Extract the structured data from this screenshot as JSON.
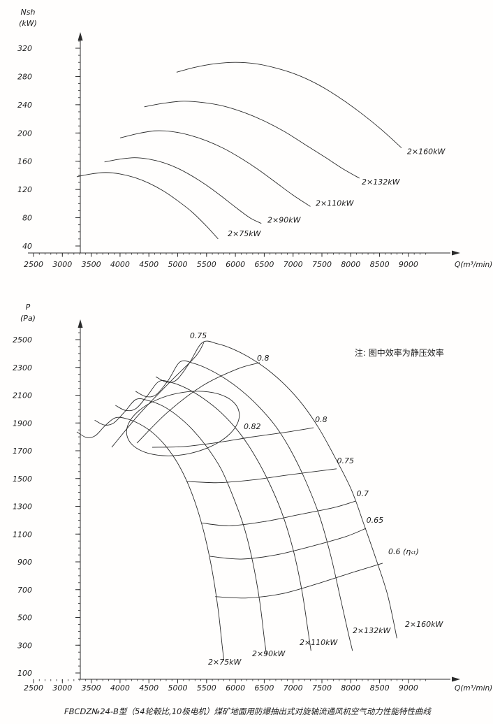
{
  "page": {
    "background_color": "#fffefd",
    "line_color": "#2b2b2b",
    "text_color": "#1c1c1c"
  },
  "caption": {
    "text": "FBCDZ№24-B型（54轮毂比,10极电机）煤矿地面用防爆抽出式对旋轴流通风机空气动力性能特性曲线"
  },
  "chart_data": [
    {
      "name": "shaft-power-chart",
      "type": "line",
      "xlabel": "Q(m³/min)",
      "ylabel_line1": "Nsh",
      "ylabel_line2": "(kW)",
      "xlim": [
        2500,
        9400
      ],
      "ylim": [
        30,
        330
      ],
      "grid": false,
      "x_ticks": [
        2500,
        3000,
        3500,
        4000,
        4500,
        5000,
        5500,
        6000,
        6500,
        7000,
        7500,
        8000,
        8500,
        9000
      ],
      "x_minor_step": 100,
      "x_minor_end": 9300,
      "y_ticks": [
        40,
        80,
        120,
        160,
        200,
        240,
        280,
        320
      ],
      "y_minor_step": 10,
      "y_minor_range": [
        30,
        330
      ],
      "series": [
        {
          "name": "2×75kW",
          "label_at": [
            5866,
            54
          ],
          "points": [
            [
              3250,
              138
            ],
            [
              3500,
              142
            ],
            [
              3750,
              144
            ],
            [
              4000,
              142
            ],
            [
              4250,
              137
            ],
            [
              4500,
              129
            ],
            [
              4750,
              118
            ],
            [
              5000,
              104
            ],
            [
              5250,
              88
            ],
            [
              5500,
              68
            ],
            [
              5700,
              50
            ]
          ]
        },
        {
          "name": "2×90kW",
          "label_at": [
            6556,
            73
          ],
          "points": [
            [
              3730,
              159
            ],
            [
              4000,
              163
            ],
            [
              4250,
              165
            ],
            [
              4500,
              163
            ],
            [
              4750,
              158
            ],
            [
              5000,
              150
            ],
            [
              5250,
              139
            ],
            [
              5500,
              126
            ],
            [
              5750,
              111
            ],
            [
              6000,
              95
            ],
            [
              6250,
              80
            ],
            [
              6450,
              72
            ]
          ]
        },
        {
          "name": "2×110kW",
          "label_at": [
            7391,
            97
          ],
          "points": [
            [
              4000,
              193
            ],
            [
              4300,
              199
            ],
            [
              4600,
              203
            ],
            [
              4900,
              202
            ],
            [
              5200,
              197
            ],
            [
              5500,
              189
            ],
            [
              5800,
              178
            ],
            [
              6100,
              164
            ],
            [
              6400,
              148
            ],
            [
              6700,
              130
            ],
            [
              7000,
              112
            ],
            [
              7300,
              96
            ]
          ]
        },
        {
          "name": "2×132kW",
          "label_at": [
            8190,
            127
          ],
          "points": [
            [
              4420,
              237
            ],
            [
              4750,
              242
            ],
            [
              5100,
              245
            ],
            [
              5450,
              243
            ],
            [
              5800,
              238
            ],
            [
              6150,
              229
            ],
            [
              6500,
              217
            ],
            [
              6850,
              202
            ],
            [
              7200,
              184
            ],
            [
              7550,
              166
            ],
            [
              7850,
              150
            ],
            [
              8150,
              136
            ]
          ]
        },
        {
          "name": "2×160kW",
          "label_at": [
            8976,
            170
          ],
          "points": [
            [
              4980,
              286
            ],
            [
              5300,
              293
            ],
            [
              5650,
              298
            ],
            [
              6000,
              300
            ],
            [
              6350,
              298
            ],
            [
              6700,
              292
            ],
            [
              7050,
              283
            ],
            [
              7400,
              270
            ],
            [
              7750,
              253
            ],
            [
              8100,
              233
            ],
            [
              8500,
              207
            ],
            [
              8880,
              179
            ]
          ]
        }
      ]
    },
    {
      "name": "static-pressure-chart",
      "type": "line",
      "xlabel": "Q(m³/min)",
      "ylabel_line1": "P",
      "ylabel_line2": "(Pa)",
      "xlim": [
        2500,
        9400
      ],
      "ylim": [
        55,
        2550
      ],
      "grid": false,
      "note": {
        "text": "注: 图中效率为静压效率",
        "at": [
          8068,
          2384
        ]
      },
      "x_ticks": [
        2500,
        3000,
        3500,
        4000,
        4500,
        5000,
        5500,
        6000,
        6500,
        7000,
        7500,
        8000,
        8500,
        9000
      ],
      "x_minor_step": 100,
      "x_minor_end": 9300,
      "y_ticks": [
        100,
        300,
        500,
        700,
        900,
        1100,
        1300,
        1500,
        1700,
        1900,
        2100,
        2300,
        2500
      ],
      "y_minor_step": 50,
      "y_minor_range": [
        100,
        2550
      ],
      "series": [
        {
          "name": "2×75kW",
          "label_at": [
            5526,
            160
          ],
          "points": [
            [
              3250,
              1836
            ],
            [
              3420,
              1795
            ],
            [
              3570,
              1808
            ],
            [
              3740,
              1880
            ],
            [
              3916,
              1937
            ],
            [
              4120,
              1930
            ],
            [
              4350,
              1890
            ],
            [
              4580,
              1825
            ],
            [
              4800,
              1730
            ],
            [
              5000,
              1610
            ],
            [
              5180,
              1460
            ],
            [
              5340,
              1280
            ],
            [
              5480,
              1070
            ],
            [
              5600,
              830
            ],
            [
              5700,
              560
            ],
            [
              5770,
              300
            ],
            [
              5800,
              190
            ]
          ]
        },
        {
          "name": "2×90kW",
          "label_at": [
            6289,
            221
          ],
          "points": [
            [
              3560,
              1920
            ],
            [
              3730,
              1885
            ],
            [
              3890,
              1900
            ],
            [
              4080,
              1980
            ],
            [
              4280,
              2070
            ],
            [
              4500,
              2060
            ],
            [
              4750,
              2020
            ],
            [
              5000,
              1950
            ],
            [
              5250,
              1855
            ],
            [
              5500,
              1730
            ],
            [
              5750,
              1570
            ],
            [
              5950,
              1380
            ],
            [
              6150,
              1150
            ],
            [
              6300,
              900
            ],
            [
              6420,
              620
            ],
            [
              6500,
              350
            ],
            [
              6540,
              230
            ]
          ]
        },
        {
          "name": "2×110kW",
          "label_at": [
            7112,
            301
          ],
          "points": [
            [
              3920,
              2027
            ],
            [
              4100,
              1990
            ],
            [
              4280,
              2005
            ],
            [
              4480,
              2100
            ],
            [
              4679,
              2200
            ],
            [
              4900,
              2190
            ],
            [
              5150,
              2150
            ],
            [
              5450,
              2075
            ],
            [
              5750,
              1975
            ],
            [
              6050,
              1840
            ],
            [
              6300,
              1690
            ],
            [
              6550,
              1500
            ],
            [
              6800,
              1260
            ],
            [
              7000,
              990
            ],
            [
              7150,
              700
            ],
            [
              7250,
              430
            ],
            [
              7310,
              260
            ]
          ]
        },
        {
          "name": "2×132kW",
          "label_at": [
            8032,
            387
          ],
          "points": [
            [
              4270,
              2128
            ],
            [
              4450,
              2090
            ],
            [
              4630,
              2105
            ],
            [
              4840,
              2210
            ],
            [
              5042,
              2340
            ],
            [
              5270,
              2330
            ],
            [
              5520,
              2290
            ],
            [
              5800,
              2225
            ],
            [
              6100,
              2135
            ],
            [
              6400,
              2020
            ],
            [
              6700,
              1875
            ],
            [
              6950,
              1710
            ],
            [
              7200,
              1500
            ],
            [
              7450,
              1240
            ],
            [
              7650,
              950
            ],
            [
              7820,
              640
            ],
            [
              7950,
              400
            ],
            [
              8030,
              260
            ]
          ]
        },
        {
          "name": "2×160kW",
          "label_at": [
            8940,
            432
          ],
          "points": [
            [
              4620,
              2233
            ],
            [
              4800,
              2195
            ],
            [
              4980,
              2210
            ],
            [
              5200,
              2330
            ],
            [
              5430,
              2480
            ],
            [
              5690,
              2470
            ],
            [
              5970,
              2430
            ],
            [
              6270,
              2365
            ],
            [
              6570,
              2280
            ],
            [
              6870,
              2170
            ],
            [
              7170,
              2030
            ],
            [
              7450,
              1860
            ],
            [
              7730,
              1650
            ],
            [
              8010,
              1420
            ],
            [
              8220,
              1180
            ],
            [
              8430,
              930
            ],
            [
              8640,
              660
            ],
            [
              8800,
              350
            ]
          ]
        }
      ],
      "efficiency_contours": [
        {
          "value": "0.75",
          "branch": "upper",
          "label_anchor": "middle",
          "label_at": [
            5358,
            2510
          ],
          "points": [
            [
              3856,
              1725
            ],
            [
              4340,
              1967
            ],
            [
              4885,
              2203
            ],
            [
              5309,
              2379
            ],
            [
              5454,
              2480
            ]
          ]
        },
        {
          "value": "0.8",
          "branch": "upper",
          "label_anchor": "middle",
          "label_at": [
            6480,
            2350
          ],
          "points": [
            [
              4292,
              1755
            ],
            [
              4824,
              1977
            ],
            [
              5430,
              2168
            ],
            [
              6035,
              2289
            ],
            [
              6422,
              2334
            ]
          ]
        },
        {
          "value": "0.8",
          "branch": "lower",
          "label_anchor": "start",
          "label_at": [
            7380,
            1906
          ],
          "points": [
            [
              4558,
              1725
            ],
            [
              5100,
              1730
            ],
            [
              5700,
              1760
            ],
            [
              6300,
              1800
            ],
            [
              6900,
              1835
            ],
            [
              7355,
              1866
            ]
          ]
        },
        {
          "value": "0.75",
          "branch": "lower",
          "label_anchor": "start",
          "label_at": [
            7760,
            1609
          ],
          "points": [
            [
              5150,
              1480
            ],
            [
              5700,
              1470
            ],
            [
              6300,
              1490
            ],
            [
              6900,
              1525
            ],
            [
              7754,
              1570
            ]
          ]
        },
        {
          "value": "0.7",
          "branch": "lower",
          "label_anchor": "start",
          "label_at": [
            8100,
            1372
          ],
          "points": [
            [
              5420,
              1180
            ],
            [
              5900,
              1160
            ],
            [
              6500,
              1190
            ],
            [
              7100,
              1240
            ],
            [
              7700,
              1290
            ],
            [
              8081,
              1337
            ]
          ]
        },
        {
          "value": "0.65",
          "branch": "lower",
          "label_anchor": "start",
          "label_at": [
            8270,
            1181
          ],
          "points": [
            [
              5560,
              940
            ],
            [
              6100,
              920
            ],
            [
              6700,
              950
            ],
            [
              7300,
              1010
            ],
            [
              7900,
              1080
            ],
            [
              8262,
              1141
            ]
          ]
        },
        {
          "value": "0.6 (ηₛₜ)",
          "branch": "lower",
          "label_anchor": "start",
          "label_at": [
            8650,
            955
          ],
          "points": [
            [
              5650,
              650
            ],
            [
              6200,
              640
            ],
            [
              6800,
              670
            ],
            [
              7400,
              740
            ],
            [
              8000,
              820
            ],
            [
              8553,
              890
            ]
          ]
        }
      ],
      "efficiency_island": {
        "value": "0.82",
        "center": [
          5091,
          1896
        ],
        "radius_q": 993,
        "radius_p": 221,
        "rotation_deg": -12,
        "label_at": [
          6144,
          1856
        ]
      }
    }
  ]
}
